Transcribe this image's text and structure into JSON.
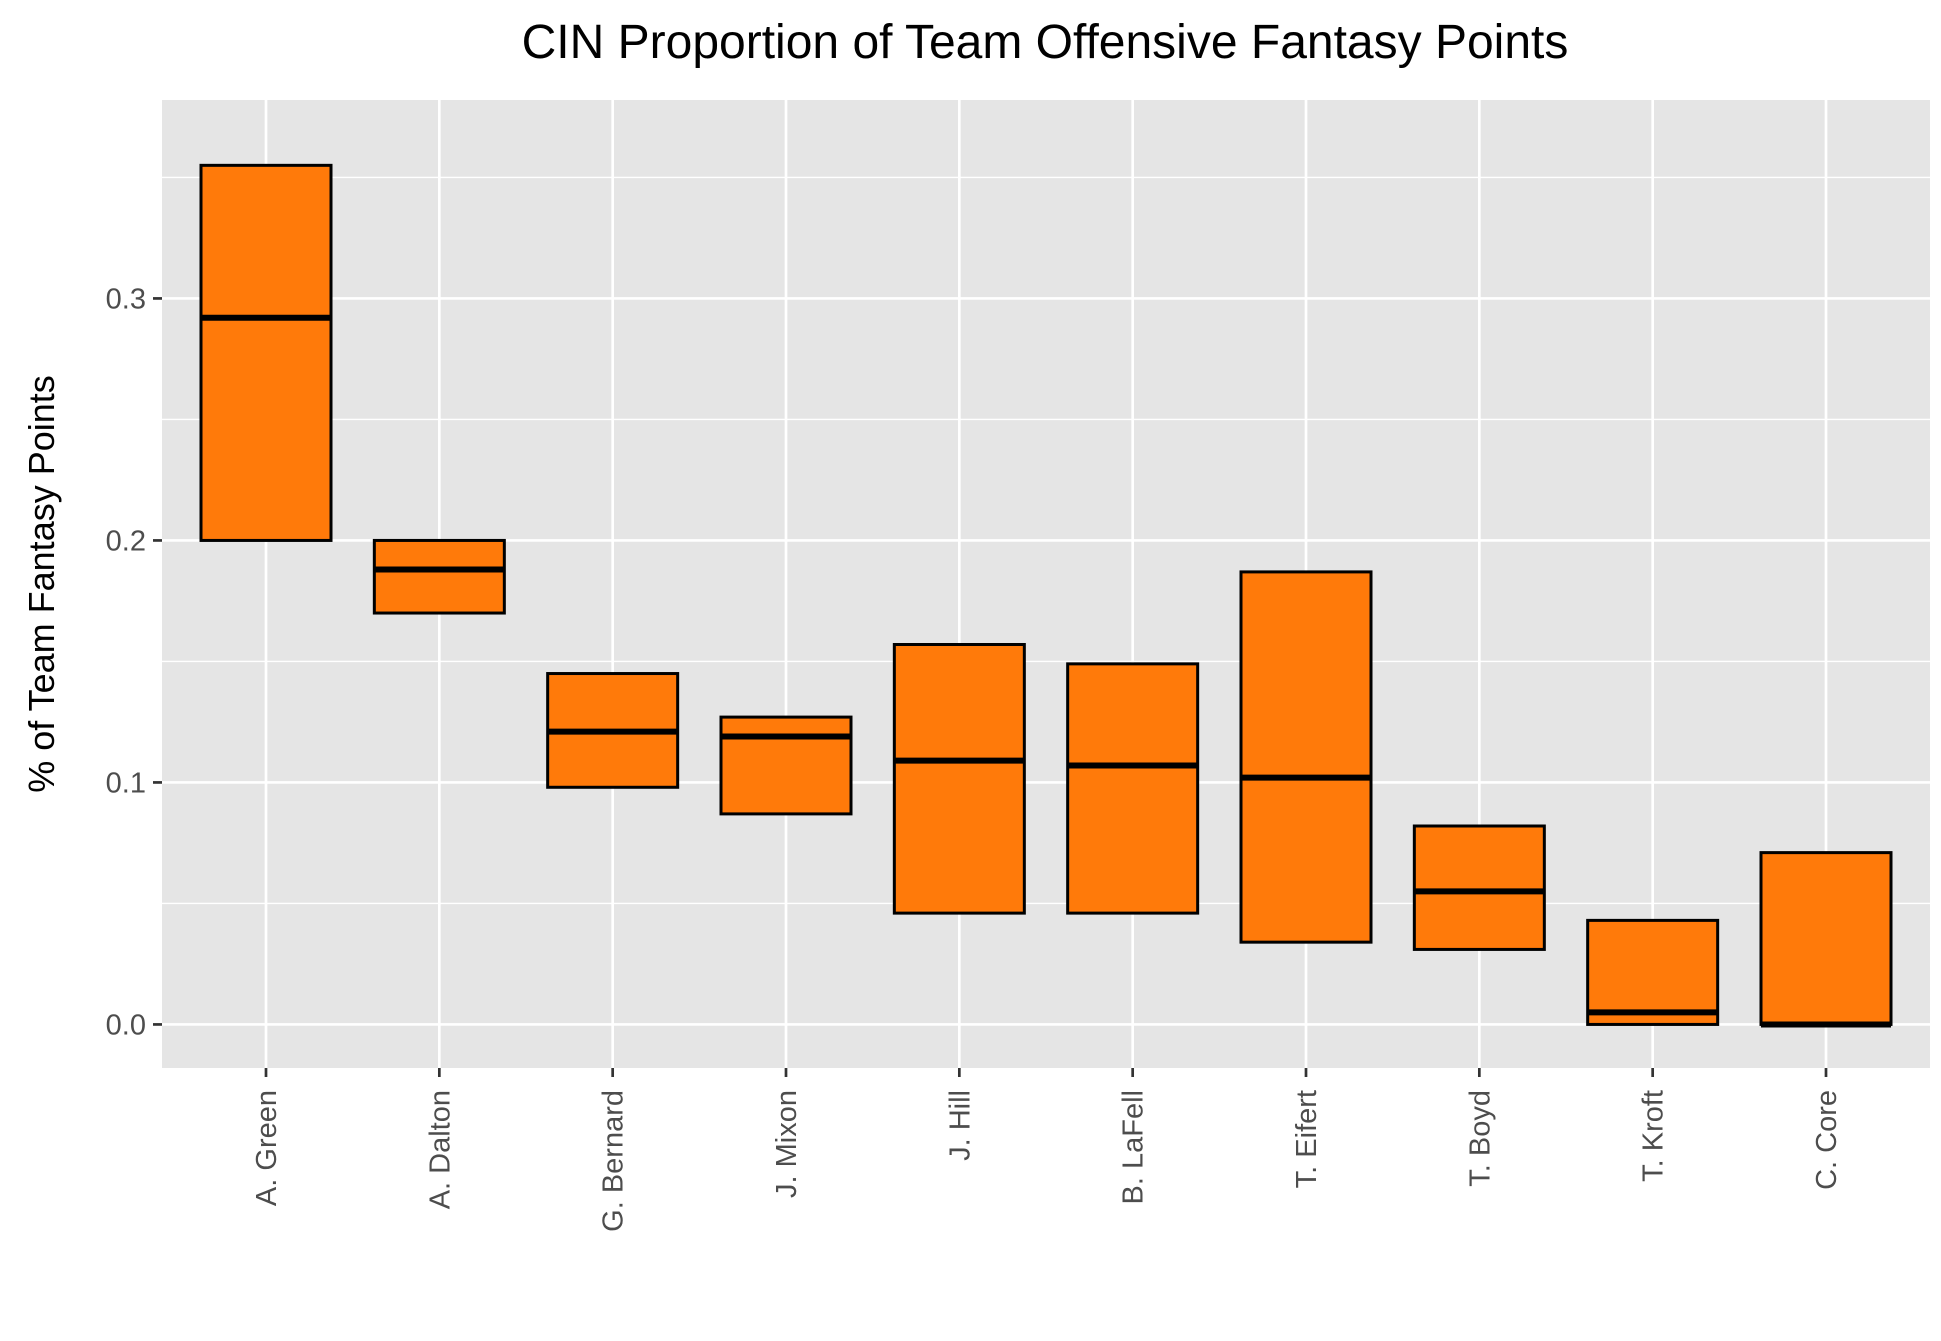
{
  "chart_data": {
    "type": "boxplot",
    "title": "CIN Proportion of Team Offensive Fantasy Points",
    "xlabel": "",
    "ylabel": "% of Team Fantasy Points",
    "ylim": [
      -0.018,
      0.382
    ],
    "y_ticks": [
      "0.0",
      "0.1",
      "0.2",
      "0.3"
    ],
    "y_tick_values": [
      0.0,
      0.1,
      0.2,
      0.3
    ],
    "grid": true,
    "legend": "none",
    "colors": {
      "fill": "#ff7a0a",
      "stroke": "#000000",
      "panel": "#e5e5e5",
      "grid": "#ffffff",
      "tick_text": "#4d4d4d"
    },
    "categories": [
      "A. Green",
      "A. Dalton",
      "G. Bernard",
      "J. Mixon",
      "J. Hill",
      "B. LaFell",
      "T. Eifert",
      "T. Boyd",
      "T. Kroft",
      "C. Core"
    ],
    "boxes": [
      {
        "q1": 0.2,
        "median": 0.292,
        "q3": 0.355
      },
      {
        "q1": 0.17,
        "median": 0.188,
        "q3": 0.2
      },
      {
        "q1": 0.098,
        "median": 0.121,
        "q3": 0.145
      },
      {
        "q1": 0.087,
        "median": 0.119,
        "q3": 0.127
      },
      {
        "q1": 0.046,
        "median": 0.109,
        "q3": 0.157
      },
      {
        "q1": 0.046,
        "median": 0.107,
        "q3": 0.149
      },
      {
        "q1": 0.034,
        "median": 0.102,
        "q3": 0.187
      },
      {
        "q1": 0.031,
        "median": 0.055,
        "q3": 0.082
      },
      {
        "q1": 0.0,
        "median": 0.005,
        "q3": 0.043
      },
      {
        "q1": 0.0,
        "median": 0.0,
        "q3": 0.071
      }
    ]
  }
}
